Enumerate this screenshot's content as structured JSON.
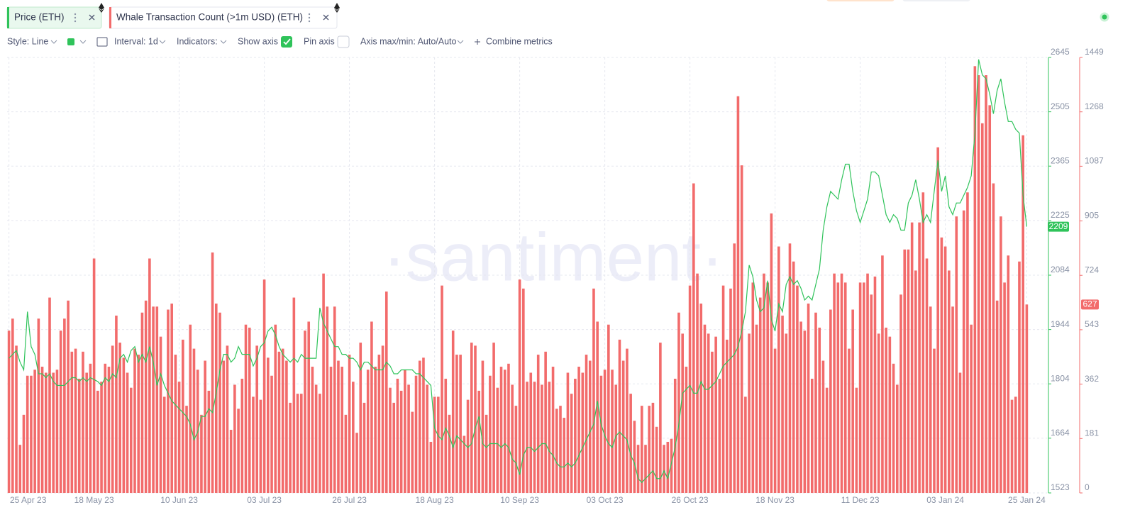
{
  "toolbar": {
    "style": "Style: Line",
    "interval": "Interval: 1d",
    "indicators": "Indicators:",
    "show_axis": "Show axis",
    "pin_axis": "Pin axis",
    "axis_range": "Axis max/min: Auto/Auto",
    "combine": "Combine metrics"
  },
  "watermark": "·santiment·",
  "chart_data": {
    "type": "combo",
    "grid": true,
    "categories": [
      "25 Apr 23",
      null,
      null,
      null,
      null,
      null,
      null,
      null,
      null,
      null,
      null,
      null,
      null,
      null,
      null,
      null,
      null,
      null,
      null,
      null,
      null,
      null,
      null,
      "18 May 23",
      null,
      null,
      null,
      null,
      null,
      null,
      null,
      null,
      null,
      null,
      null,
      null,
      null,
      null,
      null,
      null,
      null,
      null,
      null,
      null,
      null,
      null,
      "10 Jun 23",
      null,
      null,
      null,
      null,
      null,
      null,
      null,
      null,
      null,
      null,
      null,
      null,
      null,
      null,
      null,
      null,
      null,
      null,
      null,
      null,
      null,
      null,
      "03 Jul 23",
      null,
      null,
      null,
      null,
      null,
      null,
      null,
      null,
      null,
      null,
      null,
      null,
      null,
      null,
      null,
      null,
      null,
      null,
      null,
      null,
      null,
      null,
      "26 Jul 23",
      null,
      null,
      null,
      null,
      null,
      null,
      null,
      null,
      null,
      null,
      null,
      null,
      null,
      null,
      null,
      null,
      null,
      null,
      null,
      null,
      null,
      null,
      "18 Aug 23",
      null,
      null,
      null,
      null,
      null,
      null,
      null,
      null,
      null,
      null,
      null,
      null,
      null,
      null,
      null,
      null,
      null,
      null,
      null,
      null,
      null,
      null,
      "10 Sep 23",
      null,
      null,
      null,
      null,
      null,
      null,
      null,
      null,
      null,
      null,
      null,
      null,
      null,
      null,
      null,
      null,
      null,
      null,
      null,
      null,
      null,
      null,
      "03 Oct 23",
      null,
      null,
      null,
      null,
      null,
      null,
      null,
      null,
      null,
      null,
      null,
      null,
      null,
      null,
      null,
      null,
      null,
      null,
      null,
      null,
      null,
      null,
      "26 Oct 23",
      null,
      null,
      null,
      null,
      null,
      null,
      null,
      null,
      null,
      null,
      null,
      null,
      null,
      null,
      null,
      null,
      null,
      null,
      null,
      null,
      null,
      null,
      "18 Nov 23",
      null,
      null,
      null,
      null,
      null,
      null,
      null,
      null,
      null,
      null,
      null,
      null,
      null,
      null,
      null,
      null,
      null,
      null,
      null,
      null,
      null,
      null,
      "11 Dec 23",
      null,
      null,
      null,
      null,
      null,
      null,
      null,
      null,
      null,
      null,
      null,
      null,
      null,
      null,
      null,
      null,
      null,
      null,
      null,
      null,
      null,
      null,
      "03 Jan 24",
      null,
      null,
      null,
      null,
      null,
      null,
      null,
      null,
      null,
      null,
      null,
      null,
      null,
      null,
      null,
      null,
      null,
      null,
      null,
      null,
      null,
      "25 Jan 24"
    ],
    "ylim": [
      1523,
      2645
    ],
    "yticks": [
      1523,
      1664,
      1804,
      1944,
      2084,
      2225,
      2365,
      2505,
      2645
    ],
    "y2lim": [
      0,
      1449
    ],
    "y2ticks": [
      0,
      181,
      362,
      543,
      724,
      905,
      1087,
      1268,
      1449
    ],
    "series": [
      {
        "name": "Price (ETH)",
        "type": "line",
        "axis": "y",
        "color": "#2fc35a",
        "values": [
          1870,
          1880,
          1890,
          1860,
          1840,
          1990,
          1900,
          1880,
          1830,
          1830,
          1820,
          1830,
          1810,
          1800,
          1800,
          1800,
          1810,
          1820,
          1820,
          1810,
          1820,
          1810,
          1820,
          1815,
          1810,
          1800,
          1820,
          1810,
          1830,
          1820,
          1870,
          1880,
          1860,
          1890,
          1900,
          1860,
          1880,
          1860,
          1900,
          1860,
          1800,
          1830,
          1800,
          1780,
          1760,
          1750,
          1740,
          1730,
          1720,
          1700,
          1660,
          1680,
          1720,
          1720,
          1740,
          1730,
          1780,
          1840,
          1880,
          1880,
          1860,
          1870,
          1900,
          1880,
          1880,
          1880,
          1850,
          1870,
          1900,
          1910,
          1940,
          1950,
          1930,
          1900,
          1880,
          1870,
          1860,
          1870,
          1860,
          1880,
          1870,
          1870,
          1870,
          1870,
          2000,
          1960,
          1940,
          1920,
          1900,
          1900,
          1880,
          1880,
          1870,
          1870,
          1860,
          1840,
          1860,
          1860,
          1850,
          1840,
          1840,
          1840,
          1860,
          1850,
          1830,
          1830,
          1840,
          1840,
          1840,
          1840,
          1830,
          1830,
          1820,
          1810,
          1800,
          1690,
          1670,
          1660,
          1690,
          1670,
          1640,
          1670,
          1660,
          1650,
          1640,
          1650,
          1690,
          1720,
          1650,
          1640,
          1650,
          1650,
          1650,
          1640,
          1650,
          1640,
          1610,
          1600,
          1570,
          1620,
          1640,
          1640,
          1630,
          1640,
          1650,
          1650,
          1630,
          1620,
          1600,
          1590,
          1590,
          1600,
          1590,
          1600,
          1620,
          1640,
          1660,
          1680,
          1700,
          1760,
          1700,
          1670,
          1650,
          1640,
          1670,
          1680,
          1670,
          1660,
          1620,
          1600,
          1560,
          1550,
          1560,
          1570,
          1580,
          1560,
          1560,
          1580,
          1560,
          1600,
          1640,
          1700,
          1780,
          1790,
          1800,
          1780,
          1780,
          1810,
          1790,
          1790,
          1800,
          1810,
          1830,
          1850,
          1860,
          1870,
          1880,
          1900,
          1940,
          1990,
          2110,
          2080,
          2020,
          1990,
          2000,
          2070,
          1970,
          1940,
          2010,
          1990,
          2060,
          2080,
          2060,
          2070,
          2050,
          2020,
          2030,
          2020,
          2060,
          2100,
          2200,
          2260,
          2300,
          2290,
          2280,
          2330,
          2370,
          2370,
          2300,
          2250,
          2220,
          2250,
          2280,
          2350,
          2350,
          2340,
          2290,
          2240,
          2220,
          2240,
          2230,
          2200,
          2200,
          2270,
          2290,
          2330,
          2280,
          2220,
          2240,
          2220,
          2300,
          2380,
          2300,
          2340,
          2260,
          2240,
          2270,
          2270,
          2290,
          2310,
          2340,
          2450,
          2640,
          2600,
          2590,
          2550,
          2500,
          2560,
          2590,
          2530,
          2480,
          2480,
          2460,
          2450,
          2290,
          2209
        ]
      },
      {
        "name": "Whale Transaction Count (>1m USD) (ETH)",
        "type": "bar",
        "axis": "y2",
        "color": "#f26b6b",
        "values": [
          540,
          580,
          490,
          160,
          260,
          390,
          390,
          410,
          580,
          420,
          400,
          650,
          400,
          410,
          540,
          580,
          640,
          470,
          480,
          380,
          470,
          400,
          430,
          780,
          340,
          370,
          430,
          420,
          490,
          590,
          500,
          450,
          400,
          350,
          480,
          460,
          600,
          640,
          780,
          620,
          620,
          520,
          320,
          610,
          630,
          460,
          370,
          510,
          290,
          560,
          480,
          410,
          260,
          440,
          340,
          800,
          630,
          600,
          440,
          490,
          210,
          360,
          280,
          380,
          560,
          550,
          320,
          490,
          310,
          710,
          450,
          390,
          560,
          470,
          480,
          440,
          300,
          650,
          330,
          330,
          540,
          570,
          420,
          360,
          330,
          730,
          620,
          420,
          620,
          440,
          420,
          260,
          460,
          370,
          200,
          500,
          300,
          410,
          570,
          420,
          460,
          490,
          670,
          350,
          300,
          380,
          340,
          410,
          360,
          270,
          390,
          440,
          450,
          360,
          170,
          320,
          320,
          690,
          380,
          260,
          540,
          460,
          460,
          190,
          310,
          500,
          490,
          340,
          440,
          260,
          390,
          500,
          350,
          420,
          410,
          430,
          360,
          290,
          710,
          680,
          370,
          400,
          370,
          460,
          360,
          470,
          370,
          420,
          280,
          290,
          250,
          400,
          330,
          380,
          420,
          400,
          460,
          440,
          680,
          570,
          390,
          410,
          560,
          410,
          360,
          510,
          440,
          480,
          330,
          240,
          160,
          290,
          160,
          290,
          300,
          220,
          500,
          160,
          170,
          180,
          380,
          600,
          530,
          420,
          690,
          1030,
          730,
          630,
          560,
          530,
          470,
          520,
          380,
          690,
          510,
          680,
          830,
          1320,
          1090,
          320,
          530,
          700,
          560,
          650,
          730,
          700,
          930,
          480,
          820,
          590,
          530,
          830,
          770,
          690,
          570,
          540,
          630,
          380,
          600,
          550,
          440,
          350,
          610,
          730,
          700,
          730,
          700,
          480,
          610,
          350,
          700,
          700,
          730,
          660,
          720,
          530,
          790,
          550,
          520,
          430,
          360,
          660,
          810,
          810,
          900,
          740,
          900,
          1000,
          780,
          620,
          480,
          1150,
          850,
          820,
          740,
          620,
          920,
          400,
          940,
          1000,
          560,
          1420,
          1390,
          1230,
          1390,
          1290,
          1030,
          640,
          920,
          700,
          790,
          310,
          320,
          770,
          1190,
          627
        ]
      }
    ]
  }
}
